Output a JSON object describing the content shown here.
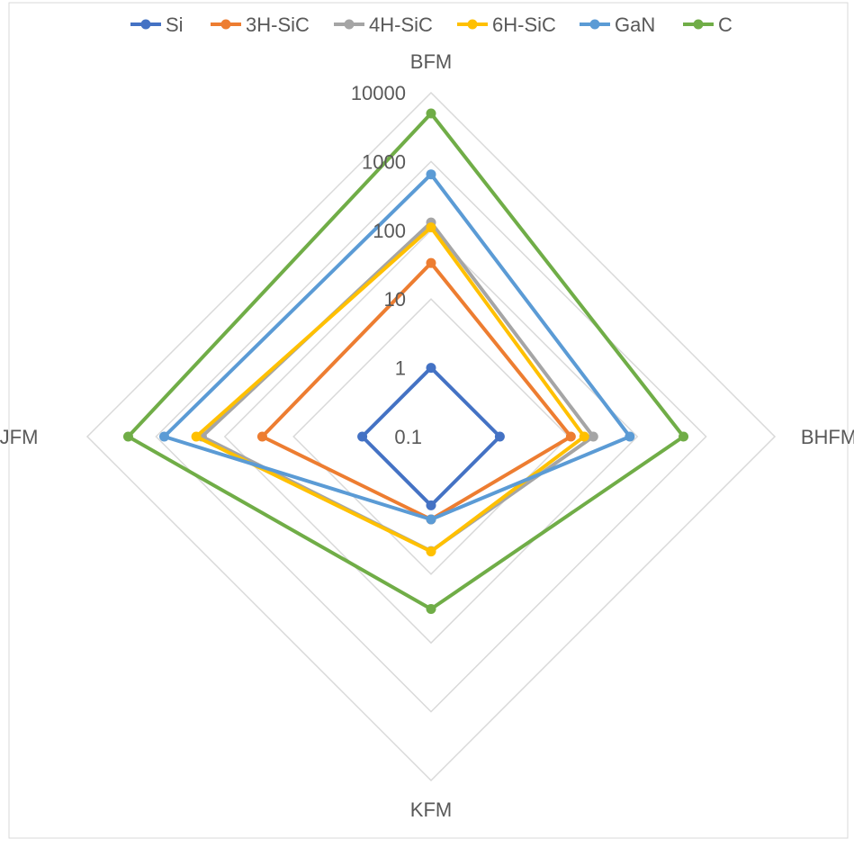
{
  "chart_data": {
    "type": "radar",
    "scale": "log",
    "categories": [
      "BFM",
      "BHFM",
      "KFM",
      "JFM"
    ],
    "tick_labels": [
      "0.1",
      "1",
      "10",
      "100",
      "1000",
      "10000"
    ],
    "tick_values": [
      0.1,
      1,
      10,
      100,
      1000,
      10000
    ],
    "range": [
      0.1,
      10000
    ],
    "grid": true,
    "legend_position": "top",
    "series": [
      {
        "name": "Si",
        "color": "#4472C4",
        "values": [
          1,
          1,
          1,
          1
        ]
      },
      {
        "name": "3H-SiC",
        "color": "#ED7D31",
        "values": [
          33.4,
          10.8,
          1.6,
          28.5
        ]
      },
      {
        "name": "4H-SiC",
        "color": "#A5A5A5",
        "values": [
          130,
          22.9,
          4.61,
          215
        ]
      },
      {
        "name": "6H-SiC",
        "color": "#FFC000",
        "values": [
          110,
          16.9,
          4.68,
          260
        ]
      },
      {
        "name": "GaN",
        "color": "#5B9BD5",
        "values": [
          650,
          77.8,
          1.6,
          760
        ]
      },
      {
        "name": "C",
        "color": "#70AD47",
        "values": [
          5000,
          470,
          32.1,
          2540
        ]
      }
    ]
  }
}
